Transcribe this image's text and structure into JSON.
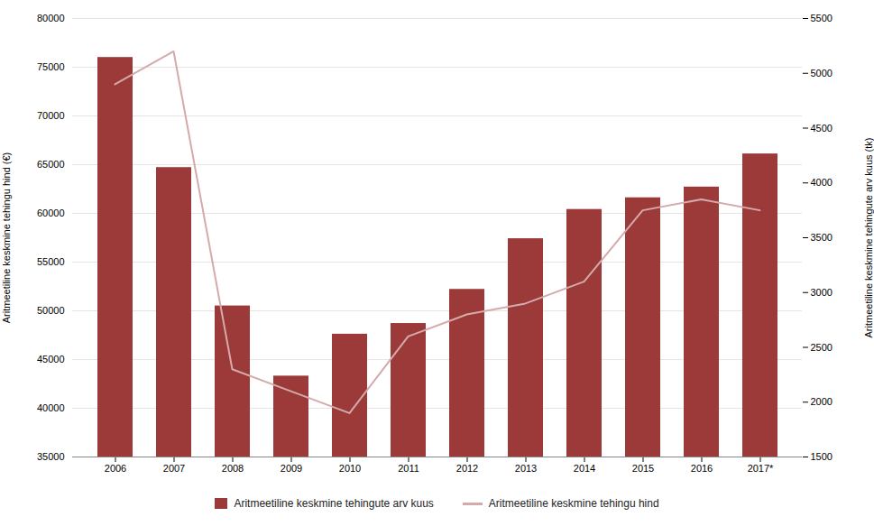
{
  "chart_data": {
    "type": "bar",
    "categories": [
      "2006",
      "2007",
      "2008",
      "2009",
      "2010",
      "2011",
      "2012",
      "2013",
      "2014",
      "2015",
      "2016",
      "2017*"
    ],
    "series": [
      {
        "name": "Aritmeetiline keskmine tehingute arv kuus",
        "type": "bar",
        "color": "#9C3A3A",
        "values": [
          76000,
          64700,
          50500,
          43300,
          47600,
          48700,
          52200,
          57400,
          60400,
          61600,
          62700,
          66100
        ]
      },
      {
        "name": "Aritmeetiline keskmine tehingu hind",
        "type": "line",
        "color": "#D4AAAA",
        "axis": "y2",
        "values": [
          4900,
          5200,
          2300,
          2100,
          1900,
          2600,
          2800,
          2900,
          3100,
          3750,
          3850,
          3750
        ]
      }
    ],
    "ylabel": "Aritmeetiline keskmine tehingu hind (€)",
    "y2label": "Aritmeetiline keskmine tehingute arv kuus (tk)",
    "ylim": [
      35000,
      80000
    ],
    "yticks": [
      35000,
      40000,
      45000,
      50000,
      55000,
      60000,
      65000,
      70000,
      75000,
      80000
    ],
    "y2lim": [
      1500,
      5500
    ],
    "y2ticks": [
      1500,
      2000,
      2500,
      3000,
      3500,
      4000,
      4500,
      5000,
      5500
    ],
    "grid": true,
    "legend": "bottom"
  }
}
